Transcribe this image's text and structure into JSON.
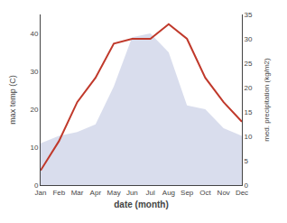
{
  "chart_data": {
    "type": "line",
    "categories": [
      "Jan",
      "Feb",
      "Mar",
      "Apr",
      "May",
      "Jun",
      "Jul",
      "Aug",
      "Sep",
      "Oct",
      "Nov",
      "Dec"
    ],
    "xlabel": "date (month)",
    "ylabel": "max temp (C)",
    "y2label": "med. precipitation (kg/m2)",
    "series": [
      {
        "type": "area",
        "color": "#aab4d8",
        "values": [
          11,
          13,
          14,
          16,
          26,
          39,
          40,
          35,
          21,
          20,
          15,
          13
        ]
      },
      {
        "type": "line",
        "axis": "y2",
        "color": "#c0392b",
        "values": [
          3,
          9,
          17,
          22,
          29,
          30,
          30,
          33,
          30,
          22,
          17,
          13
        ]
      }
    ],
    "ylim": [
      0,
      45
    ],
    "yticks": [
      0,
      10,
      20,
      30,
      40
    ],
    "y2lim": [
      0,
      35
    ],
    "y2ticks": [
      0,
      5,
      10,
      15,
      20,
      25,
      30,
      35
    ],
    "grid": false
  }
}
